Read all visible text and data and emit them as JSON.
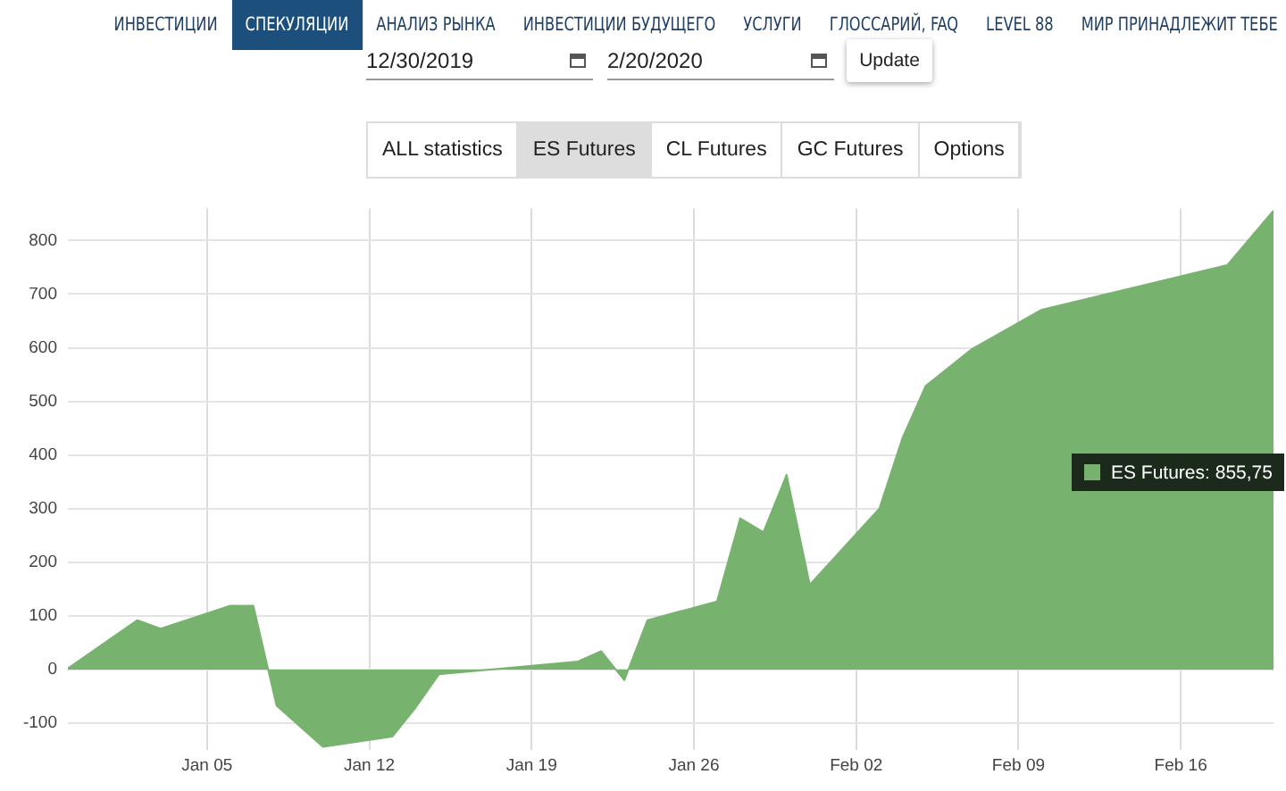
{
  "chart_data": {
    "type": "area",
    "x": [
      "2019-12-30",
      "2020-01-02",
      "2020-01-03",
      "2020-01-06",
      "2020-01-07",
      "2020-01-08",
      "2020-01-10",
      "2020-01-13",
      "2020-01-14",
      "2020-01-15",
      "2020-01-21",
      "2020-01-22",
      "2020-01-23",
      "2020-01-24",
      "2020-01-27",
      "2020-01-28",
      "2020-01-29",
      "2020-01-30",
      "2020-01-31",
      "2020-02-03",
      "2020-02-04",
      "2020-02-05",
      "2020-02-07",
      "2020-02-10",
      "2020-02-18",
      "2020-02-20"
    ],
    "series": [
      {
        "color": "#77b36e",
        "values": [
          2,
          92,
          76,
          119,
          119,
          -67,
          -144,
          -125,
          -71,
          -9,
          15,
          34,
          -20,
          92,
          127,
          282,
          256,
          363,
          158,
          300,
          432,
          529,
          598,
          671,
          754,
          855.75
        ]
      }
    ],
    "xlim": [
      "2019-12-30",
      "2020-02-20"
    ],
    "xticks": [
      {
        "value": "2020-01-05",
        "label": "Jan 05"
      },
      {
        "value": "2020-01-12",
        "label": "Jan 12"
      },
      {
        "value": "2020-01-19",
        "label": "Jan 19"
      },
      {
        "value": "2020-01-26",
        "label": "Jan 26"
      },
      {
        "value": "2020-02-02",
        "label": "Feb 02"
      },
      {
        "value": "2020-02-09",
        "label": "Feb 09"
      },
      {
        "value": "2020-02-16",
        "label": "Feb 16"
      }
    ],
    "ylim": [
      -150,
      860
    ],
    "yticks": [
      -100,
      0,
      100,
      200,
      300,
      400,
      500,
      600,
      700,
      800
    ],
    "grid": true,
    "marker": "none",
    "annotations": [
      "ИНВЕСТИЦИИ",
      "СПЕКУЛЯЦИИ",
      "АНАЛИЗ РЫНКА",
      "ИНВЕСТИЦИИ БУДУЩЕГО",
      "УСЛУГИ",
      "ГЛОССАРИЙ, FAQ",
      "LEVEL 88",
      "МИР ПРИНАДЛЕЖИТ ТЕБЕ",
      "12/30/2019",
      "2/20/2020",
      "Update",
      "ALL statistics",
      "ES Futures",
      "CL Futures",
      "GC Futures",
      "Options",
      "ES Futures: 855,75"
    ]
  }
}
